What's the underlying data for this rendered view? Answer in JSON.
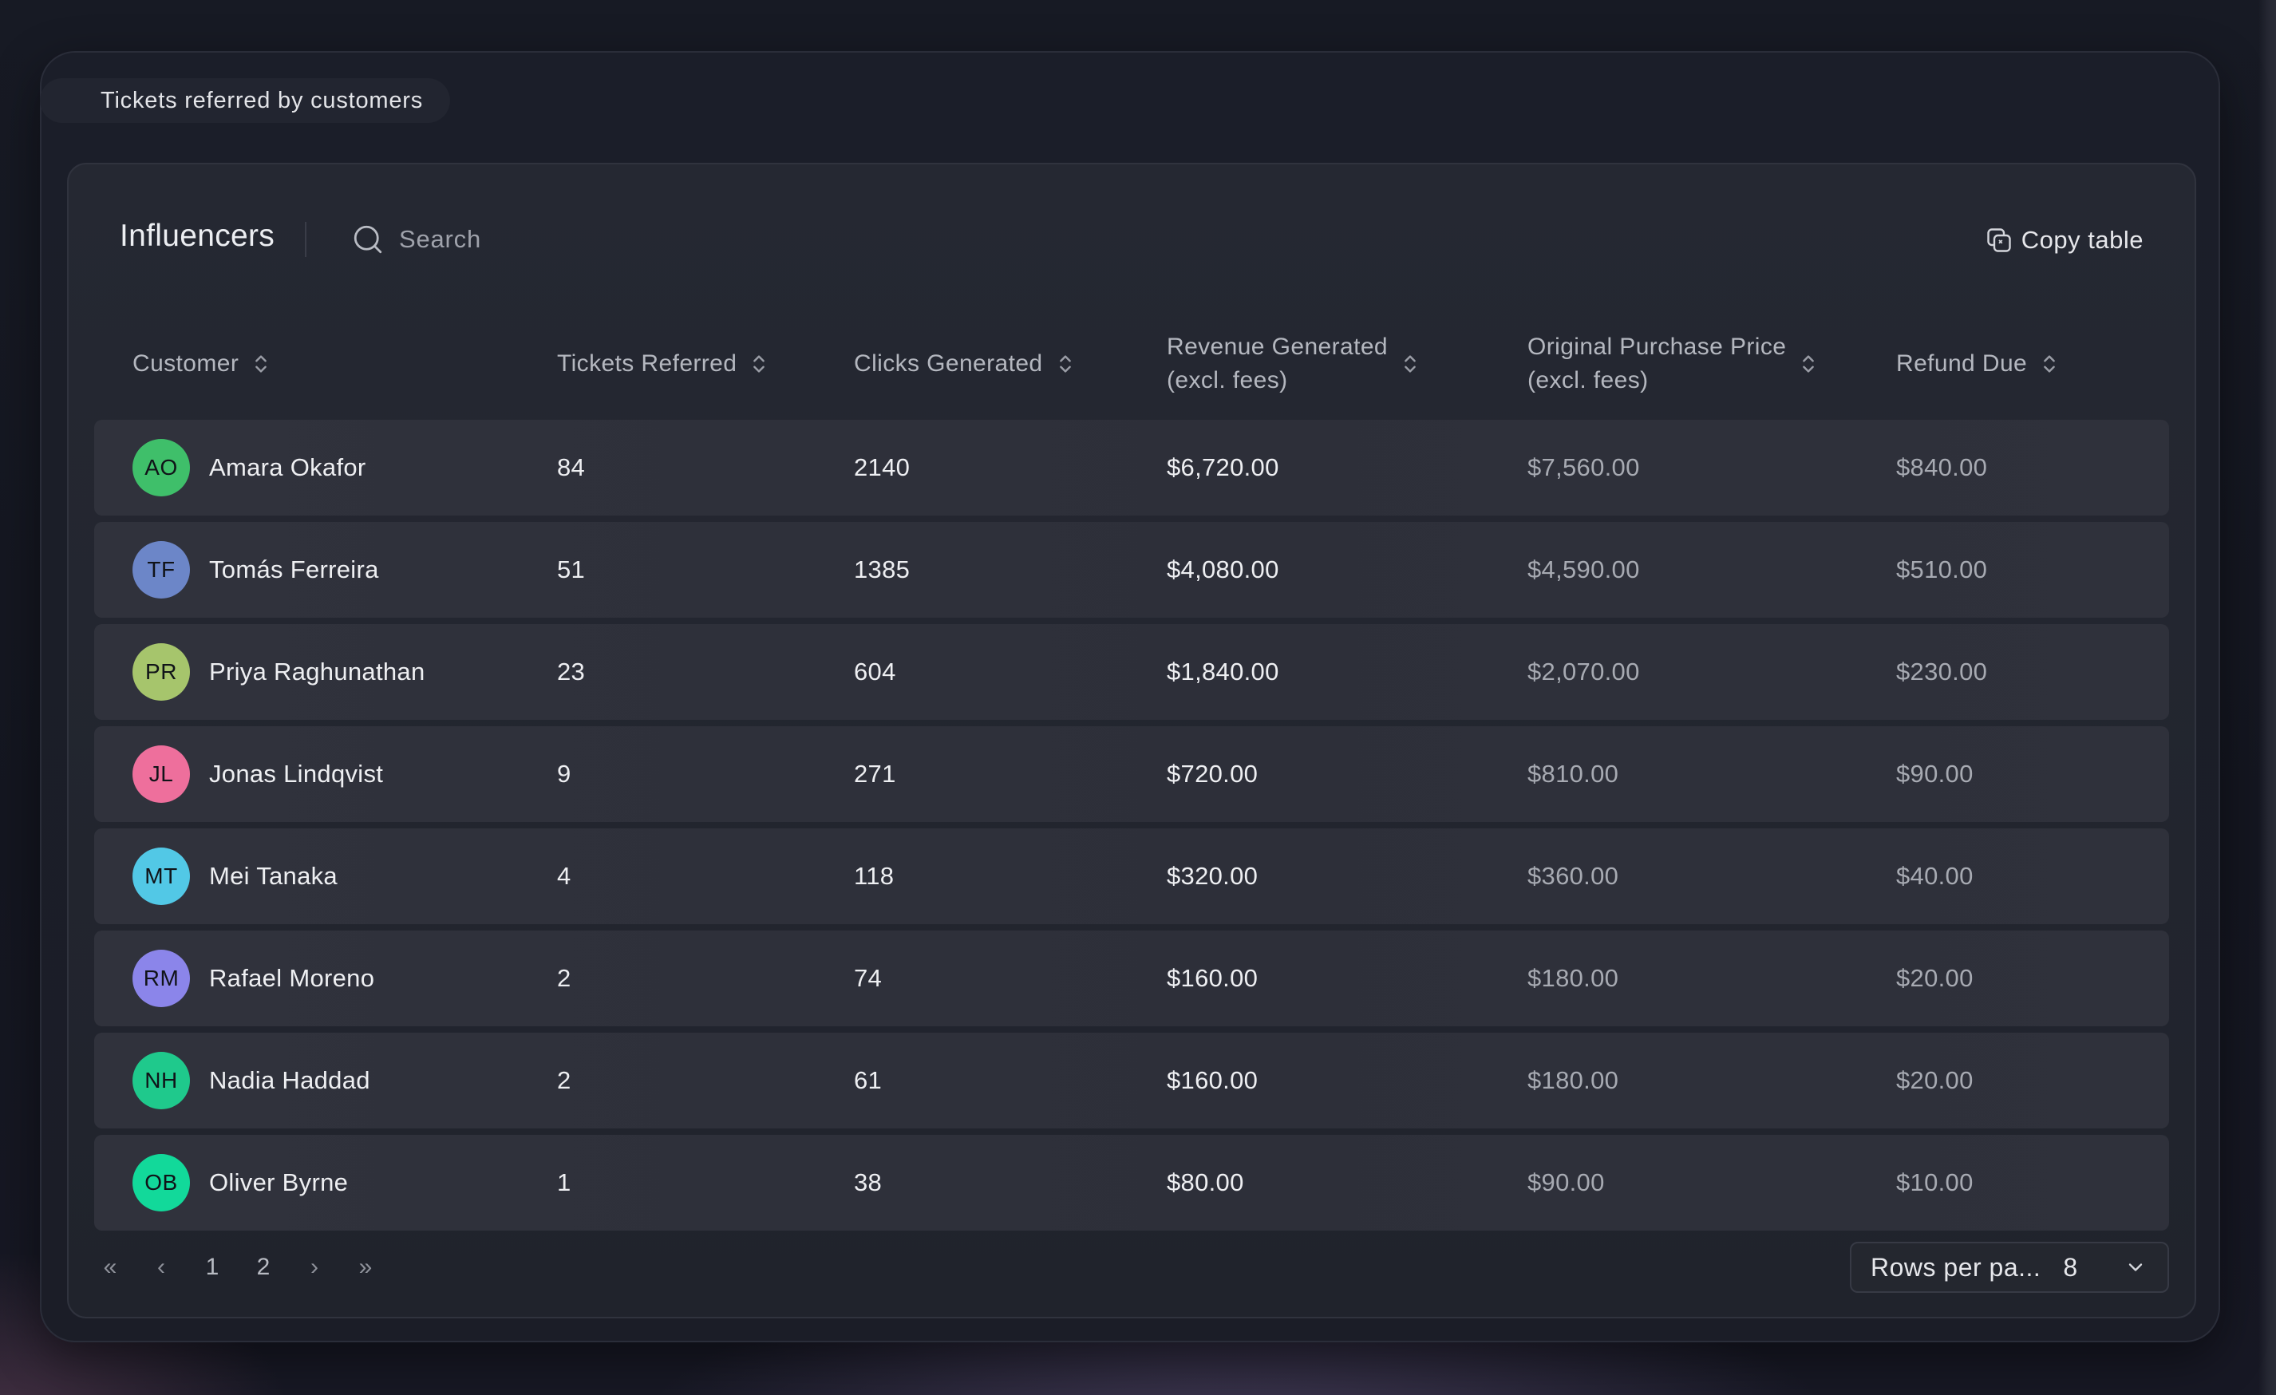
{
  "page": {
    "title": "Tickets referred by customers"
  },
  "toolbar": {
    "title": "Influencers",
    "search_placeholder": "Search",
    "copy_label": "Copy table"
  },
  "table": {
    "columns": [
      {
        "line1": "Customer",
        "line2": ""
      },
      {
        "line1": "Tickets Referred",
        "line2": ""
      },
      {
        "line1": "Clicks Generated",
        "line2": ""
      },
      {
        "line1": "Revenue Generated",
        "line2": "(excl. fees)"
      },
      {
        "line1": "Original Purchase Price",
        "line2": "(excl. fees)"
      },
      {
        "line1": "Refund Due",
        "line2": ""
      }
    ],
    "rows": [
      {
        "initials": "AO",
        "avatar_color": "#3fbf6a",
        "name": "Amara Okafor",
        "tickets": "84",
        "clicks": "2140",
        "revenue": "$6,720.00",
        "original": "$7,560.00",
        "refund": "$840.00"
      },
      {
        "initials": "TF",
        "avatar_color": "#6c86c8",
        "name": "Tomás Ferreira",
        "tickets": "51",
        "clicks": "1385",
        "revenue": "$4,080.00",
        "original": "$4,590.00",
        "refund": "$510.00"
      },
      {
        "initials": "PR",
        "avatar_color": "#a6c56c",
        "name": "Priya Raghunathan",
        "tickets": "23",
        "clicks": "604",
        "revenue": "$1,840.00",
        "original": "$2,070.00",
        "refund": "$230.00"
      },
      {
        "initials": "JL",
        "avatar_color": "#ee6f9c",
        "name": "Jonas Lindqvist",
        "tickets": "9",
        "clicks": "271",
        "revenue": "$720.00",
        "original": "$810.00",
        "refund": "$90.00"
      },
      {
        "initials": "MT",
        "avatar_color": "#52c8e6",
        "name": "Mei Tanaka",
        "tickets": "4",
        "clicks": "118",
        "revenue": "$320.00",
        "original": "$360.00",
        "refund": "$40.00"
      },
      {
        "initials": "RM",
        "avatar_color": "#8b85ea",
        "name": "Rafael Moreno",
        "tickets": "2",
        "clicks": "74",
        "revenue": "$160.00",
        "original": "$180.00",
        "refund": "$20.00"
      },
      {
        "initials": "NH",
        "avatar_color": "#1fc98c",
        "name": "Nadia Haddad",
        "tickets": "2",
        "clicks": "61",
        "revenue": "$160.00",
        "original": "$180.00",
        "refund": "$20.00"
      },
      {
        "initials": "OB",
        "avatar_color": "#12d99a",
        "name": "Oliver Byrne",
        "tickets": "1",
        "clicks": "38",
        "revenue": "$80.00",
        "original": "$90.00",
        "refund": "$10.00"
      }
    ]
  },
  "pagination": {
    "first": "«",
    "prev": "‹",
    "pages": [
      "1",
      "2"
    ],
    "current_page": "1",
    "next": "›",
    "last": "»",
    "rows_per_page_label": "Rows per pa...",
    "rows_per_page_value": "8"
  },
  "icons": {
    "search": "search-icon",
    "copy": "copy-icon",
    "sort": "sort-icon",
    "chevron": "chevron-down-icon"
  }
}
